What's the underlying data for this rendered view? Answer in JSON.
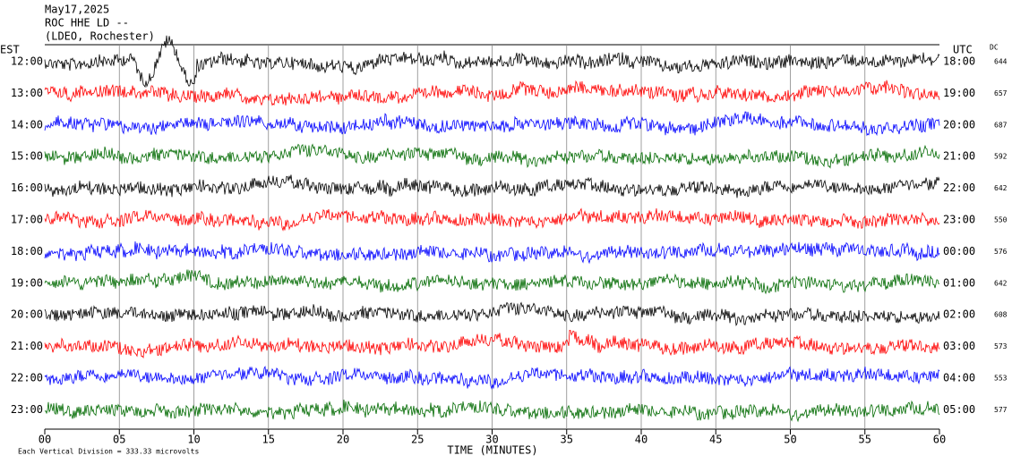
{
  "header": {
    "lines": [
      "May17,2025",
      "ROC HHE LD --",
      "(LDEO, Rochester)"
    ]
  },
  "plot": {
    "left_label": "EST",
    "right_label": "UTC",
    "dc_label": "DC",
    "rows": [
      {
        "est": "12:00",
        "utc": "18:00",
        "dc": "644",
        "color": "#000000"
      },
      {
        "est": "13:00",
        "utc": "19:00",
        "dc": "657",
        "color": "#ff0000"
      },
      {
        "est": "14:00",
        "utc": "20:00",
        "dc": "687",
        "color": "#0000ff"
      },
      {
        "est": "15:00",
        "utc": "21:00",
        "dc": "592",
        "color": "#006a00"
      },
      {
        "est": "16:00",
        "utc": "22:00",
        "dc": "642",
        "color": "#000000"
      },
      {
        "est": "17:00",
        "utc": "23:00",
        "dc": "550",
        "color": "#ff0000"
      },
      {
        "est": "18:00",
        "utc": "00:00",
        "dc": "576",
        "color": "#0000ff"
      },
      {
        "est": "19:00",
        "utc": "01:00",
        "dc": "642",
        "color": "#006a00"
      },
      {
        "est": "20:00",
        "utc": "02:00",
        "dc": "608",
        "color": "#000000"
      },
      {
        "est": "21:00",
        "utc": "03:00",
        "dc": "573",
        "color": "#ff0000"
      },
      {
        "est": "22:00",
        "utc": "04:00",
        "dc": "553",
        "color": "#0000ff"
      },
      {
        "est": "23:00",
        "utc": "05:00",
        "dc": "577",
        "color": "#006a00"
      }
    ],
    "xticks": [
      "00",
      "05",
      "10",
      "15",
      "20",
      "25",
      "30",
      "35",
      "40",
      "45",
      "50",
      "55",
      "60"
    ],
    "xlabel": "TIME (MINUTES)",
    "footer": "Each Vertical Division =  333.33 microvolts"
  }
}
